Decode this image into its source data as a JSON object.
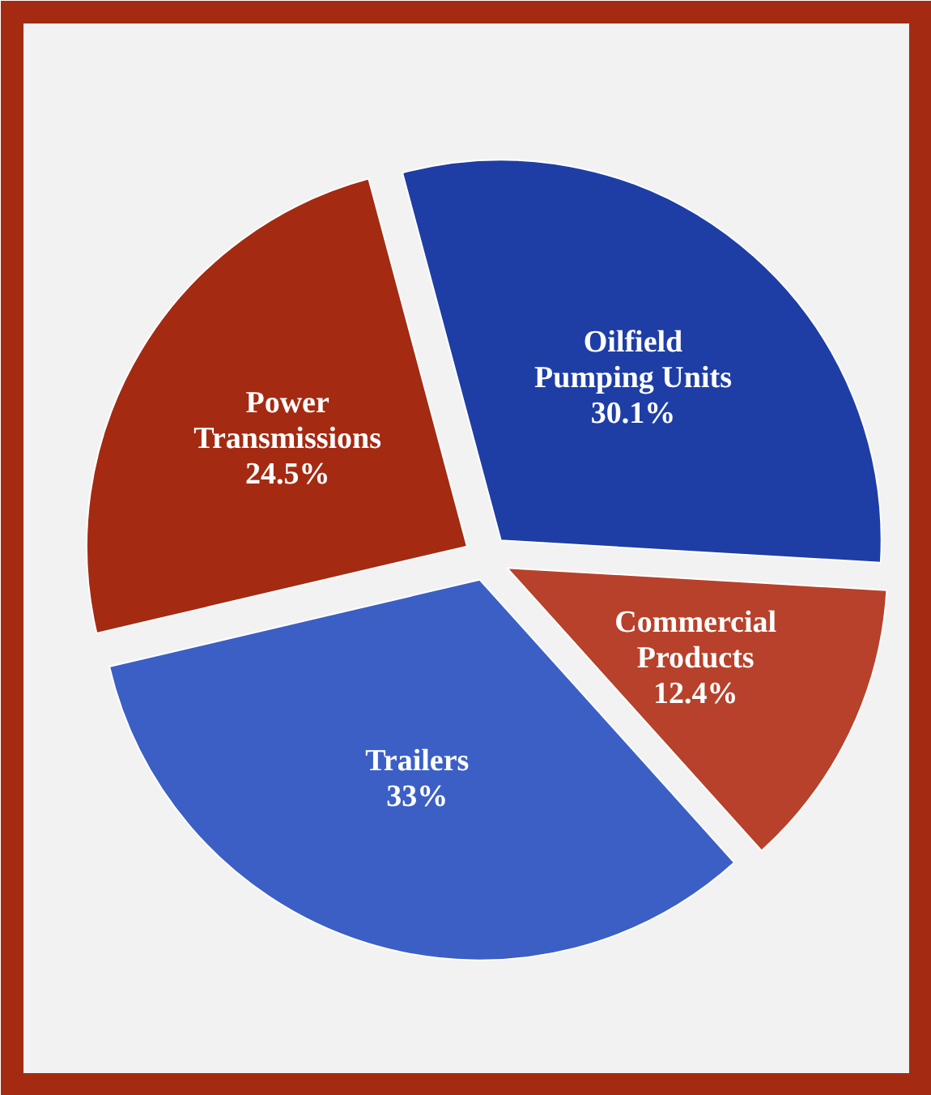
{
  "chart_data": {
    "type": "pie",
    "categories": [
      "Oilfield Pumping Units",
      "Commercial Products",
      "Trailers",
      "Power Transmissions"
    ],
    "values": [
      30.1,
      12.4,
      33,
      24.5
    ],
    "value_labels": [
      "30.1%",
      "12.4%",
      "33%",
      "24.5%"
    ],
    "colors": [
      "#1e3ea6",
      "#b8412b",
      "#3c5fc6",
      "#a52a12"
    ]
  }
}
